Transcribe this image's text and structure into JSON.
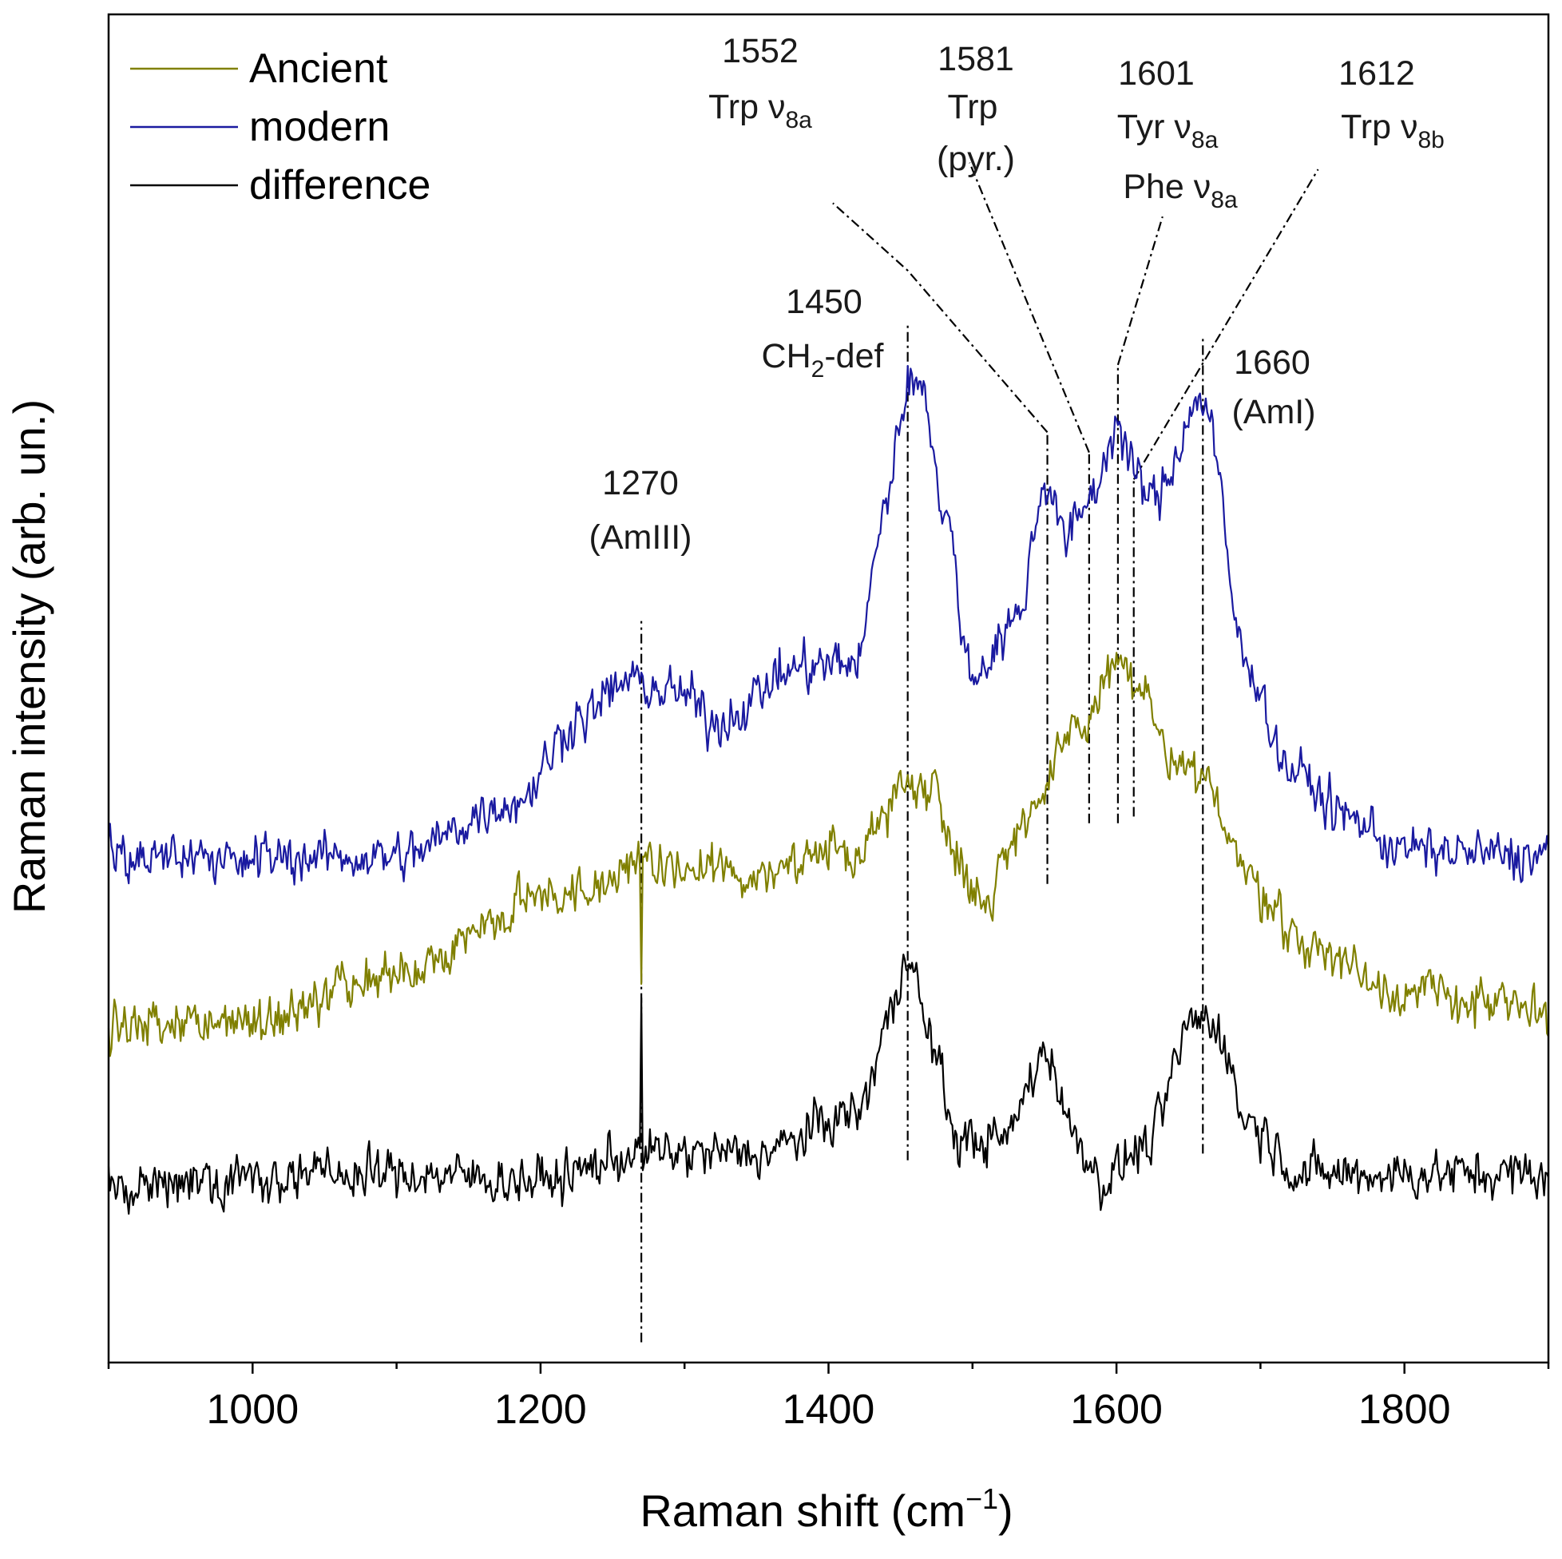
{
  "chart_data": {
    "type": "line",
    "title": "",
    "xlabel": "Raman shift (cm",
    "xlabel_sup": "−1",
    "xlabel_close": ")",
    "ylabel": "Raman intensity (arb. un.)",
    "xlim": [
      900,
      1900
    ],
    "ylim": [
      0,
      10
    ],
    "x_major_ticks": [
      1000,
      1200,
      1400,
      1600,
      1800
    ],
    "x_tick_labels": [
      "1000",
      "1200",
      "1400",
      "1600",
      "1800"
    ],
    "x_minor_step": 100,
    "grid": false,
    "legend_position": "top-left",
    "colors": {
      "ancient": "#808000",
      "modern": "#1a1aa0",
      "difference": "#000000",
      "reference": "#000000"
    },
    "series": [
      {
        "name": "Ancient",
        "key": "ancient",
        "baseline": [
          [
            900,
            2.5
          ],
          [
            1000,
            2.55
          ],
          [
            1100,
            2.85
          ],
          [
            1200,
            3.45
          ],
          [
            1270,
            3.65
          ],
          [
            1350,
            3.65
          ],
          [
            1420,
            3.8
          ],
          [
            1455,
            4.3
          ],
          [
            1470,
            4.3
          ],
          [
            1490,
            3.8
          ],
          [
            1505,
            3.4
          ],
          [
            1540,
            4.1
          ],
          [
            1575,
            4.7
          ],
          [
            1600,
            5.2
          ],
          [
            1615,
            5.0
          ],
          [
            1640,
            4.4
          ],
          [
            1660,
            4.3
          ],
          [
            1700,
            3.5
          ],
          [
            1730,
            3.1
          ],
          [
            1800,
            2.75
          ],
          [
            1900,
            2.6
          ]
        ],
        "spikes": [
          [
            1270,
            -0.9
          ]
        ]
      },
      {
        "name": "modern",
        "key": "modern",
        "baseline": [
          [
            900,
            3.75
          ],
          [
            1100,
            3.75
          ],
          [
            1180,
            4.15
          ],
          [
            1230,
            4.8
          ],
          [
            1260,
            5.05
          ],
          [
            1300,
            4.95
          ],
          [
            1320,
            4.75
          ],
          [
            1380,
            5.15
          ],
          [
            1420,
            5.2
          ],
          [
            1440,
            6.4
          ],
          [
            1455,
            7.25
          ],
          [
            1465,
            7.3
          ],
          [
            1480,
            6.3
          ],
          [
            1500,
            5.1
          ],
          [
            1530,
            5.5
          ],
          [
            1552,
            6.55
          ],
          [
            1565,
            6.1
          ],
          [
            1581,
            6.4
          ],
          [
            1601,
            6.95
          ],
          [
            1612,
            6.6
          ],
          [
            1625,
            6.4
          ],
          [
            1660,
            7.15
          ],
          [
            1690,
            5.2
          ],
          [
            1720,
            4.4
          ],
          [
            1760,
            4.05
          ],
          [
            1800,
            3.8
          ],
          [
            1900,
            3.75
          ]
        ],
        "spikes": []
      },
      {
        "name": "difference",
        "key": "difference",
        "baseline": [
          [
            900,
            1.35
          ],
          [
            1100,
            1.4
          ],
          [
            1200,
            1.35
          ],
          [
            1270,
            1.55
          ],
          [
            1350,
            1.55
          ],
          [
            1420,
            1.85
          ],
          [
            1445,
            2.6
          ],
          [
            1455,
            3.1
          ],
          [
            1470,
            2.4
          ],
          [
            1490,
            1.65
          ],
          [
            1520,
            1.65
          ],
          [
            1552,
            2.3
          ],
          [
            1570,
            1.7
          ],
          [
            1590,
            1.35
          ],
          [
            1620,
            1.6
          ],
          [
            1655,
            2.55
          ],
          [
            1670,
            2.5
          ],
          [
            1690,
            1.8
          ],
          [
            1730,
            1.4
          ],
          [
            1900,
            1.4
          ]
        ],
        "spikes": [
          [
            1270,
            1.0
          ]
        ]
      }
    ],
    "reference_lines": [
      {
        "x": 1270,
        "y0": 0.15,
        "y1": 5.5
      },
      {
        "x": 1455,
        "y0": 1.5,
        "y1": 7.7
      },
      {
        "x": 1552,
        "y0": 3.55,
        "y1": 6.9
      },
      {
        "x": 1581,
        "y0": 4.0,
        "y1": 6.75
      },
      {
        "x": 1601,
        "y0": 4.0,
        "y1": 7.4
      },
      {
        "x": 1612,
        "y0": 4.05,
        "y1": 6.55
      },
      {
        "x": 1660,
        "y0": 1.55,
        "y1": 7.6
      }
    ],
    "leader_lines": [
      {
        "points": [
          [
            1552,
            6.9
          ],
          [
            1455,
            8.1
          ],
          [
            1403,
            8.6
          ]
        ]
      },
      {
        "points": [
          [
            1581,
            6.75
          ],
          [
            1498,
            8.9
          ]
        ]
      },
      {
        "points": [
          [
            1601,
            7.4
          ],
          [
            1632,
            8.5
          ]
        ]
      },
      {
        "points": [
          [
            1612,
            6.55
          ],
          [
            1740,
            8.85
          ]
        ]
      }
    ],
    "annotations": [
      {
        "id": "1552",
        "lines": [
          {
            "text": "1552"
          },
          {
            "text": "Trp ν",
            "sub": "8a"
          }
        ]
      },
      {
        "id": "1581",
        "lines": [
          {
            "text": "1581"
          },
          {
            "text": "Trp"
          },
          {
            "text": "(pyr.)"
          }
        ]
      },
      {
        "id": "1601",
        "lines": [
          {
            "text": "1601"
          },
          {
            "text": "Tyr ν",
            "sub": "8a"
          },
          {
            "text": "Phe ν",
            "sub": "8a"
          }
        ]
      },
      {
        "id": "1612",
        "lines": [
          {
            "text": "1612"
          },
          {
            "text": "Trp ν",
            "sub": "8b"
          }
        ]
      },
      {
        "id": "1450",
        "lines": [
          {
            "text": "1450"
          },
          {
            "text": "CH",
            "sub": "2",
            "after": "-def"
          }
        ]
      },
      {
        "id": "1660",
        "lines": [
          {
            "text": "1660"
          },
          {
            "text": "(AmI)"
          }
        ]
      },
      {
        "id": "1270",
        "lines": [
          {
            "text": "1270"
          },
          {
            "text": "(AmIII)"
          }
        ]
      }
    ]
  }
}
